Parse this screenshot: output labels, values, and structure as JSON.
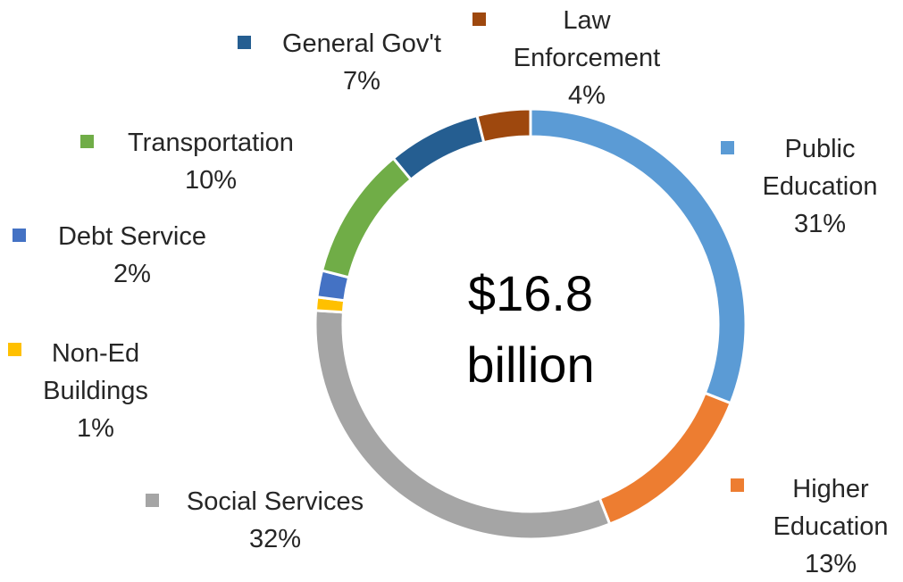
{
  "chart_data": {
    "type": "pie",
    "variant": "donut",
    "center_text": [
      "$16.8",
      "billion"
    ],
    "slices": [
      {
        "label": [
          "Public",
          "Education"
        ],
        "percent_label": "31%",
        "value": 31,
        "color": "#5B9BD5"
      },
      {
        "label": [
          "Higher",
          "Education"
        ],
        "percent_label": "13%",
        "value": 13,
        "color": "#ED7D31"
      },
      {
        "label": [
          "Social Services"
        ],
        "percent_label": "32%",
        "value": 32,
        "color": "#A5A5A5"
      },
      {
        "label": [
          "Non-Ed",
          "Buildings"
        ],
        "percent_label": "1%",
        "value": 1,
        "color": "#FFC000"
      },
      {
        "label": [
          "Debt Service"
        ],
        "percent_label": "2%",
        "value": 2,
        "color": "#4472C4"
      },
      {
        "label": [
          "Transportation"
        ],
        "percent_label": "10%",
        "value": 10,
        "color": "#70AD47"
      },
      {
        "label": [
          "General Gov't"
        ],
        "percent_label": "7%",
        "value": 7,
        "color": "#255E91"
      },
      {
        "label": [
          "Law",
          "Enforcement"
        ],
        "percent_label": "4%",
        "value": 4,
        "color": "#9E480E"
      }
    ],
    "legend": "inline labels around ring",
    "start_angle": "12 o'clock, clockwise"
  }
}
